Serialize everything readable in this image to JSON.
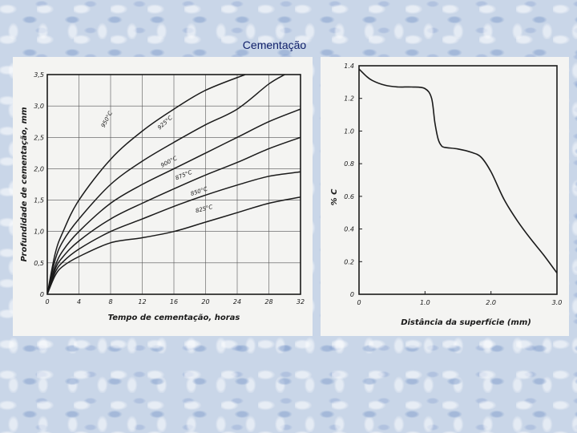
{
  "title": "Cementação",
  "chart_data": [
    {
      "type": "line",
      "xlabel": "Tempo de cementação, horas",
      "ylabel": "Profundidade de cementação, mm",
      "xlim": [
        0,
        32
      ],
      "ylim": [
        0,
        3.5
      ],
      "xticks": [
        "0",
        "4",
        "8",
        "12",
        "16",
        "20",
        "24",
        "28",
        "32"
      ],
      "yticks": [
        "0",
        "0,5",
        "1,0",
        "1,5",
        "2,0",
        "2,5",
        "3,0",
        "3,5"
      ],
      "grid": true,
      "series": [
        {
          "name": "950°C",
          "x": [
            0,
            1,
            2,
            4,
            8,
            12,
            16,
            20,
            25
          ],
          "y": [
            0,
            0.65,
            1.0,
            1.5,
            2.15,
            2.6,
            2.95,
            3.25,
            3.5
          ]
        },
        {
          "name": "925°C",
          "x": [
            0,
            1,
            2,
            4,
            8,
            12,
            16,
            20,
            24,
            28,
            30
          ],
          "y": [
            0,
            0.55,
            0.85,
            1.2,
            1.75,
            2.12,
            2.42,
            2.7,
            2.95,
            3.35,
            3.5
          ]
        },
        {
          "name": "900°C",
          "x": [
            0,
            1,
            2,
            4,
            8,
            12,
            16,
            20,
            24,
            28,
            32
          ],
          "y": [
            0,
            0.45,
            0.7,
            1.0,
            1.45,
            1.75,
            2.0,
            2.25,
            2.5,
            2.75,
            2.95
          ]
        },
        {
          "name": "875°C",
          "x": [
            0,
            1,
            2,
            4,
            8,
            12,
            16,
            20,
            24,
            28,
            32
          ],
          "y": [
            0,
            0.4,
            0.6,
            0.85,
            1.2,
            1.45,
            1.68,
            1.9,
            2.1,
            2.32,
            2.5
          ]
        },
        {
          "name": "850°C",
          "x": [
            0,
            1,
            2,
            4,
            8,
            12,
            16,
            20,
            24,
            28,
            32
          ],
          "y": [
            0,
            0.35,
            0.52,
            0.72,
            1.0,
            1.2,
            1.4,
            1.58,
            1.74,
            1.88,
            1.95
          ]
        },
        {
          "name": "825°C",
          "x": [
            0,
            1,
            2,
            4,
            8,
            12,
            16,
            20,
            24,
            28,
            32
          ],
          "y": [
            0,
            0.3,
            0.45,
            0.6,
            0.82,
            0.9,
            1.0,
            1.15,
            1.3,
            1.45,
            1.55
          ]
        }
      ]
    },
    {
      "type": "line",
      "xlabel": "Distância da superfície (mm)",
      "ylabel": "% C",
      "xlim": [
        0,
        3.0
      ],
      "ylim": [
        0,
        1.4
      ],
      "xticks": [
        "0",
        "1.0",
        "2.0",
        "3.0"
      ],
      "yticks": [
        "0",
        "0.2",
        "0.4",
        "0.6",
        "0.8",
        "1.0",
        "1.2",
        "1.4"
      ],
      "grid": false,
      "series": [
        {
          "name": "",
          "x": [
            0,
            0.1,
            0.2,
            0.4,
            0.6,
            0.8,
            1.0,
            1.1,
            1.15,
            1.2,
            1.25,
            1.3,
            1.5,
            1.7,
            1.85,
            2.0,
            2.2,
            2.4,
            2.6,
            2.8,
            3.0
          ],
          "y": [
            1.38,
            1.34,
            1.31,
            1.28,
            1.27,
            1.27,
            1.26,
            1.2,
            1.05,
            0.95,
            0.91,
            0.9,
            0.89,
            0.87,
            0.84,
            0.75,
            0.58,
            0.45,
            0.34,
            0.24,
            0.13
          ]
        }
      ]
    }
  ]
}
